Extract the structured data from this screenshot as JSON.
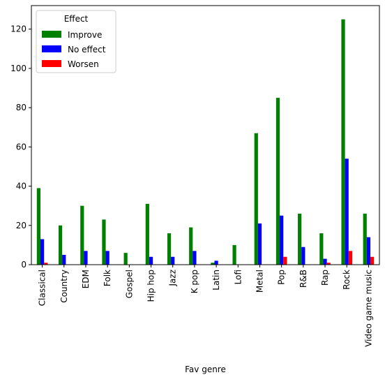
{
  "chart_data": {
    "type": "bar",
    "title": "",
    "xlabel": "Fav genre",
    "ylabel": "",
    "ylim": [
      0,
      132
    ],
    "yticks": [
      0,
      20,
      40,
      60,
      80,
      100,
      120
    ],
    "grid": false,
    "legend": {
      "title": "Effect",
      "placement": "top-left"
    },
    "categories": [
      "Classical",
      "Country",
      "EDM",
      "Folk",
      "Gospel",
      "Hip hop",
      "Jazz",
      "K pop",
      "Latin",
      "Lofi",
      "Metal",
      "Pop",
      "R&B",
      "Rap",
      "Rock",
      "Video game music"
    ],
    "series": [
      {
        "name": "Improve",
        "color": "#008000",
        "values": [
          39,
          20,
          30,
          23,
          6,
          31,
          16,
          19,
          1,
          10,
          67,
          85,
          26,
          16,
          125,
          26
        ]
      },
      {
        "name": "No effect",
        "color": "#0000ff",
        "values": [
          13,
          5,
          7,
          7,
          0,
          4,
          4,
          7,
          2,
          0,
          21,
          25,
          9,
          3,
          54,
          14
        ]
      },
      {
        "name": "Worsen",
        "color": "#ff0000",
        "values": [
          1,
          0,
          0,
          0,
          0,
          0,
          0,
          0,
          0,
          0,
          0,
          4,
          0,
          1,
          7,
          4
        ]
      }
    ]
  }
}
